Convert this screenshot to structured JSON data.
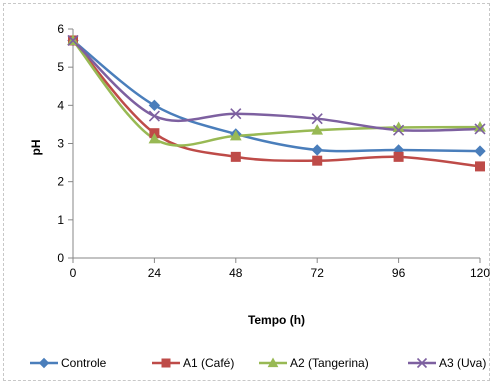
{
  "chart_data": {
    "type": "line",
    "title": "",
    "xlabel": "Tempo (h)",
    "ylabel": "pH",
    "x": [
      0,
      24,
      48,
      72,
      96,
      120
    ],
    "xticks": [
      "0",
      "24",
      "48",
      "72",
      "96",
      "120"
    ],
    "yticks": [
      "0",
      "1",
      "2",
      "3",
      "4",
      "5",
      "6"
    ],
    "xlim": [
      0,
      120
    ],
    "ylim": [
      0,
      6
    ],
    "grid": false,
    "legend_position": "bottom",
    "smooth": true,
    "series": [
      {
        "name": "Controle",
        "values": [
          5.7,
          4.0,
          3.25,
          2.83,
          2.83,
          2.8
        ],
        "color": "#4a7ebb",
        "marker": "diamond"
      },
      {
        "name": "A1 (Café)",
        "values": [
          5.7,
          3.27,
          2.65,
          2.55,
          2.65,
          2.4
        ],
        "color": "#be4b48",
        "marker": "square"
      },
      {
        "name": "A2 (Tangerina)",
        "values": [
          5.7,
          3.12,
          3.2,
          3.35,
          3.42,
          3.43
        ],
        "color": "#98b954",
        "marker": "triangle"
      },
      {
        "name": "A3 (Uva)",
        "values": [
          5.7,
          3.72,
          3.78,
          3.65,
          3.35,
          3.38
        ],
        "color": "#7d60a0",
        "marker": "x"
      }
    ]
  }
}
